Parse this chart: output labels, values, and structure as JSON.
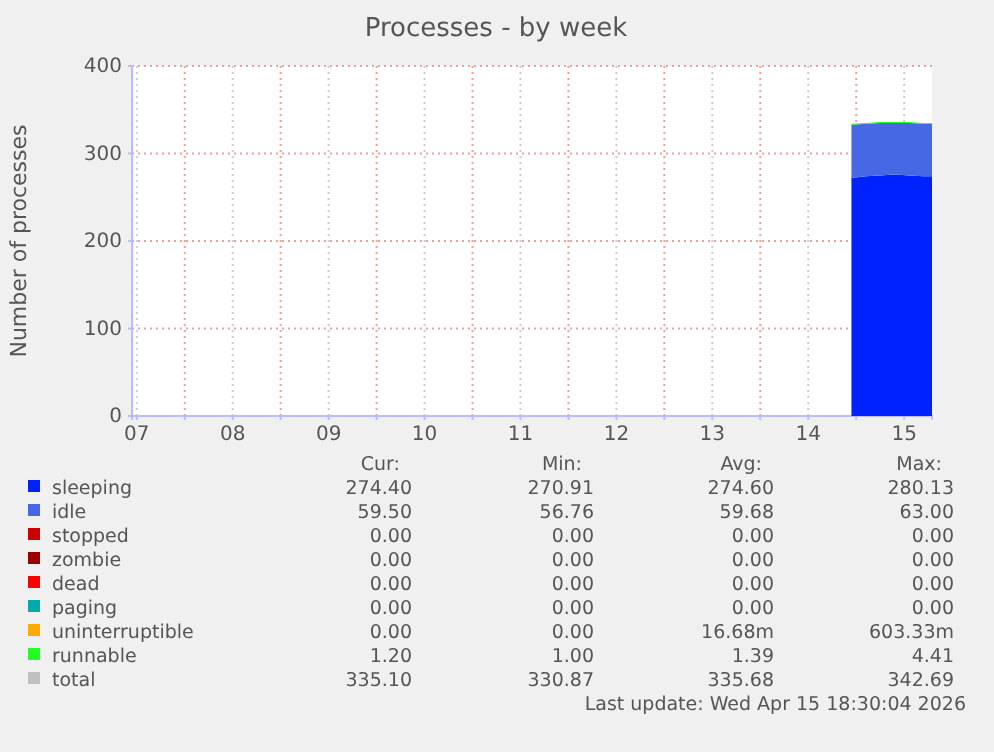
{
  "chart_data": {
    "type": "area",
    "title": "Processes - by week",
    "ylabel": "Number of processes",
    "stacked": true,
    "grid": true,
    "legend": "bottom",
    "xlim": [
      7.45,
      15.79
    ],
    "ylim": [
      0,
      400
    ],
    "yticks": [
      0,
      100,
      200,
      300,
      400
    ],
    "xticks": [
      {
        "value": 7.5,
        "label": "07"
      },
      {
        "value": 8,
        "label": null
      },
      {
        "value": 8.5,
        "label": "08"
      },
      {
        "value": 9,
        "label": null
      },
      {
        "value": 9.5,
        "label": "09"
      },
      {
        "value": 10,
        "label": null
      },
      {
        "value": 10.5,
        "label": "10"
      },
      {
        "value": 11,
        "label": null
      },
      {
        "value": 11.5,
        "label": "11"
      },
      {
        "value": 12,
        "label": null
      },
      {
        "value": 12.5,
        "label": "12"
      },
      {
        "value": 13,
        "label": null
      },
      {
        "value": 13.5,
        "label": "13"
      },
      {
        "value": 14,
        "label": null
      },
      {
        "value": 14.5,
        "label": "14"
      },
      {
        "value": 15,
        "label": null
      },
      {
        "value": 15.5,
        "label": "15"
      }
    ],
    "x": [
      14.95,
      15.1,
      15.25,
      15.4,
      15.55,
      15.7,
      15.79
    ],
    "series": [
      {
        "name": "sleeping",
        "color": "#0022ff",
        "values": [
          272,
          274,
          275,
          276,
          275,
          274,
          274
        ]
      },
      {
        "name": "idle",
        "color": "#4668e4",
        "values": [
          61,
          60,
          60,
          59,
          60,
          60,
          60
        ]
      },
      {
        "name": "stopped",
        "color": "#cc0000",
        "values": [
          null,
          null,
          null,
          null,
          null,
          null,
          null
        ]
      },
      {
        "name": "zombie",
        "color": "#990000",
        "values": [
          null,
          null,
          null,
          null,
          null,
          null,
          null
        ]
      },
      {
        "name": "dead",
        "color": "#ff0000",
        "values": [
          null,
          null,
          null,
          null,
          null,
          null,
          null
        ]
      },
      {
        "name": "paging",
        "color": "#00aaaa",
        "values": [
          null,
          null,
          null,
          null,
          null,
          null,
          null
        ]
      },
      {
        "name": "uninterruptible",
        "color": "#ffaa00",
        "values": [
          null,
          null,
          null,
          null,
          null,
          null,
          null
        ]
      },
      {
        "name": "runnable",
        "color": "#22ff22",
        "values": [
          1,
          1,
          1,
          1,
          1,
          1,
          1
        ]
      },
      {
        "name": "total",
        "color": "#c0c0c0",
        "values": [
          null,
          null,
          null,
          null,
          null,
          null,
          null
        ]
      }
    ],
    "annotations": [
      "Cur:",
      "Min:",
      "Avg:",
      "Max:",
      "274.40",
      "270.91",
      "274.60",
      "280.13",
      "59.50",
      "56.76",
      "59.68",
      "63.00",
      "0.00",
      "0.00",
      "0.00",
      "0.00",
      "0.00",
      "0.00",
      "0.00",
      "0.00",
      "0.00",
      "0.00",
      "0.00",
      "0.00",
      "0.00",
      "0.00",
      "0.00",
      "0.00",
      "0.00",
      "0.00",
      "16.68m",
      "603.33m",
      "1.20",
      "1.00",
      "1.39",
      "4.41",
      "335.10",
      "330.87",
      "335.68",
      "342.69",
      "Last update: Wed Apr 15 18:30:04 2026"
    ]
  }
}
